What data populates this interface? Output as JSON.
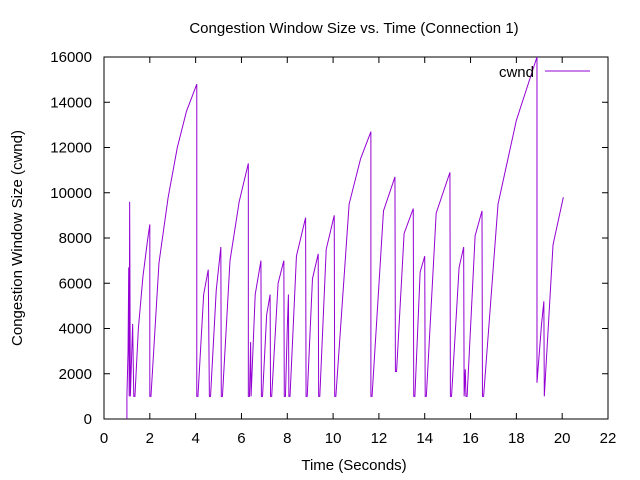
{
  "chart_data": {
    "type": "line",
    "title": "Congestion Window Size vs. Time (Connection 1)",
    "xlabel": "Time (Seconds)",
    "ylabel": "Congestion Window Size (cwnd)",
    "xlim": [
      0,
      22
    ],
    "ylim": [
      0,
      16000
    ],
    "xticks": [
      0,
      2,
      4,
      6,
      8,
      10,
      12,
      14,
      16,
      18,
      20,
      22
    ],
    "yticks": [
      0,
      2000,
      4000,
      6000,
      8000,
      10000,
      12000,
      14000,
      16000
    ],
    "grid": false,
    "legend_position": "top-right",
    "series": [
      {
        "name": "cwnd",
        "color": "#9400d3",
        "points": [
          [
            1.0,
            0
          ],
          [
            1.0,
            1000
          ],
          [
            1.05,
            3000
          ],
          [
            1.08,
            6700
          ],
          [
            1.1,
            1000
          ],
          [
            1.12,
            9600
          ],
          [
            1.15,
            1000
          ],
          [
            1.25,
            4200
          ],
          [
            1.3,
            1000
          ],
          [
            1.35,
            1000
          ],
          [
            1.5,
            4000
          ],
          [
            1.7,
            6300
          ],
          [
            1.9,
            7900
          ],
          [
            2.0,
            8600
          ],
          [
            2.0,
            1000
          ],
          [
            2.05,
            1000
          ],
          [
            2.4,
            6900
          ],
          [
            2.8,
            9800
          ],
          [
            3.2,
            12000
          ],
          [
            3.6,
            13600
          ],
          [
            4.05,
            14800
          ],
          [
            4.05,
            1000
          ],
          [
            4.1,
            1000
          ],
          [
            4.35,
            5500
          ],
          [
            4.55,
            6600
          ],
          [
            4.6,
            1000
          ],
          [
            4.65,
            1000
          ],
          [
            4.9,
            5700
          ],
          [
            5.1,
            7600
          ],
          [
            5.12,
            1000
          ],
          [
            5.17,
            1000
          ],
          [
            5.5,
            7000
          ],
          [
            5.9,
            9600
          ],
          [
            6.3,
            11300
          ],
          [
            6.3,
            1000
          ],
          [
            6.35,
            1000
          ],
          [
            6.4,
            3400
          ],
          [
            6.42,
            1000
          ],
          [
            6.6,
            5500
          ],
          [
            6.85,
            7000
          ],
          [
            6.87,
            1000
          ],
          [
            6.92,
            1000
          ],
          [
            7.1,
            4600
          ],
          [
            7.25,
            5500
          ],
          [
            7.27,
            1000
          ],
          [
            7.32,
            1000
          ],
          [
            7.6,
            6000
          ],
          [
            7.85,
            7000
          ],
          [
            7.87,
            1000
          ],
          [
            7.92,
            1000
          ],
          [
            8.0,
            4000
          ],
          [
            8.05,
            5500
          ],
          [
            8.07,
            1000
          ],
          [
            8.12,
            1000
          ],
          [
            8.4,
            7200
          ],
          [
            8.8,
            8900
          ],
          [
            8.82,
            1000
          ],
          [
            8.87,
            1000
          ],
          [
            9.1,
            6200
          ],
          [
            9.35,
            7300
          ],
          [
            9.37,
            1000
          ],
          [
            9.42,
            1000
          ],
          [
            9.7,
            7500
          ],
          [
            10.05,
            9000
          ],
          [
            10.07,
            1000
          ],
          [
            10.12,
            1000
          ],
          [
            10.7,
            9500
          ],
          [
            11.2,
            11500
          ],
          [
            11.65,
            12700
          ],
          [
            11.65,
            1000
          ],
          [
            11.7,
            1000
          ],
          [
            12.2,
            9200
          ],
          [
            12.7,
            10700
          ],
          [
            12.72,
            2100
          ],
          [
            12.77,
            2100
          ],
          [
            13.1,
            8200
          ],
          [
            13.5,
            9300
          ],
          [
            13.52,
            1000
          ],
          [
            13.57,
            1000
          ],
          [
            13.8,
            6500
          ],
          [
            14.0,
            7200
          ],
          [
            14.02,
            1000
          ],
          [
            14.07,
            1000
          ],
          [
            14.5,
            9100
          ],
          [
            15.1,
            10900
          ],
          [
            15.12,
            1000
          ],
          [
            15.17,
            1000
          ],
          [
            15.5,
            6700
          ],
          [
            15.7,
            7600
          ],
          [
            15.72,
            1000
          ],
          [
            15.77,
            2200
          ],
          [
            15.8,
            1000
          ],
          [
            15.85,
            1000
          ],
          [
            16.2,
            8100
          ],
          [
            16.5,
            9200
          ],
          [
            16.52,
            1000
          ],
          [
            16.57,
            1000
          ],
          [
            17.2,
            9500
          ],
          [
            18.0,
            13200
          ],
          [
            18.9,
            16000
          ],
          [
            18.9,
            1600
          ],
          [
            19.1,
            4200
          ],
          [
            19.2,
            5200
          ],
          [
            19.22,
            1000
          ],
          [
            19.27,
            1900
          ],
          [
            19.6,
            7700
          ],
          [
            20.05,
            9800
          ]
        ]
      }
    ]
  }
}
